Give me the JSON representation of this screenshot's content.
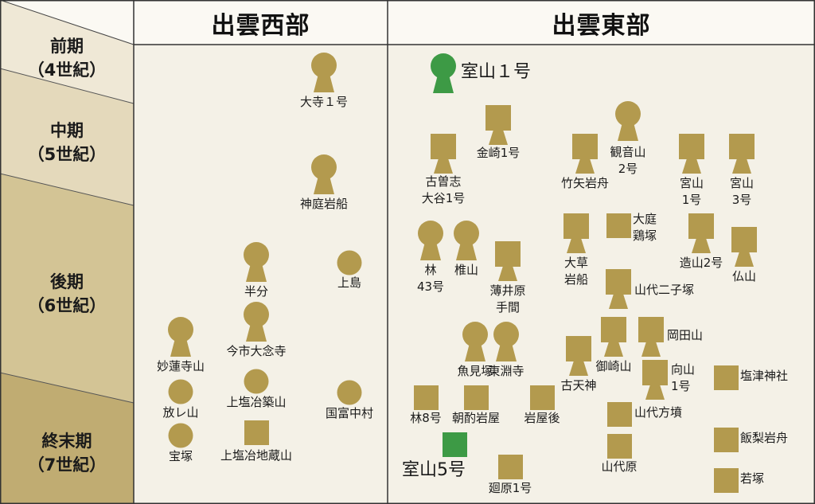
{
  "regions": {
    "west": "出雲西部",
    "east": "出雲東部"
  },
  "periods": [
    {
      "id": "early",
      "label": "前期\n（4世紀）"
    },
    {
      "id": "middle",
      "label": "中期\n（5世紀）"
    },
    {
      "id": "late",
      "label": "後期\n（6世紀）"
    },
    {
      "id": "final",
      "label": "終末期\n（7世紀）"
    }
  ],
  "mound_types": {
    "keyhole": "前方後円墳",
    "square_keyhole": "前方後方墳",
    "round": "円墳",
    "square": "方墳"
  },
  "colors": {
    "mound": "#b39a4e",
    "highlight": "#3d9a45",
    "grid": "#333333",
    "bg": "#f4f1e7"
  },
  "tombs": [
    {
      "name": "大寺１号",
      "type": "keyhole",
      "region": "west",
      "period": "early"
    },
    {
      "name": "神庭岩船",
      "type": "keyhole",
      "region": "west",
      "period": "middle"
    },
    {
      "name": "半分",
      "type": "keyhole",
      "region": "west",
      "period": "late"
    },
    {
      "name": "上島",
      "type": "round",
      "region": "west",
      "period": "late"
    },
    {
      "name": "今市大念寺",
      "type": "keyhole",
      "region": "west",
      "period": "late"
    },
    {
      "name": "妙蓮寺山",
      "type": "keyhole",
      "region": "west",
      "period": "late"
    },
    {
      "name": "上塩冶築山",
      "type": "round",
      "region": "west",
      "period": "final"
    },
    {
      "name": "放レ山",
      "type": "round",
      "region": "west",
      "period": "final"
    },
    {
      "name": "国富中村",
      "type": "round",
      "region": "west",
      "period": "final"
    },
    {
      "name": "宝塚",
      "type": "round",
      "region": "west",
      "period": "final"
    },
    {
      "name": "上塩冶地蔵山",
      "type": "square",
      "region": "west",
      "period": "final"
    },
    {
      "name": "室山１号",
      "type": "keyhole",
      "region": "east",
      "period": "early",
      "highlight": true
    },
    {
      "name": "金崎1号",
      "type": "square_keyhole",
      "region": "east",
      "period": "middle"
    },
    {
      "name": "観音山\n2号",
      "type": "keyhole",
      "region": "east",
      "period": "middle"
    },
    {
      "name": "古曽志\n大谷1号",
      "type": "square_keyhole",
      "region": "east",
      "period": "middle"
    },
    {
      "name": "竹矢岩舟",
      "type": "square_keyhole",
      "region": "east",
      "period": "middle"
    },
    {
      "name": "宮山\n1号",
      "type": "square_keyhole",
      "region": "east",
      "period": "middle"
    },
    {
      "name": "宮山\n3号",
      "type": "square_keyhole",
      "region": "east",
      "period": "middle"
    },
    {
      "name": "林\n43号",
      "type": "keyhole",
      "region": "east",
      "period": "late"
    },
    {
      "name": "椎山",
      "type": "keyhole",
      "region": "east",
      "period": "late"
    },
    {
      "name": "薄井原\n手間",
      "type": "square_keyhole",
      "region": "east",
      "period": "late"
    },
    {
      "name": "大草\n岩船",
      "type": "square_keyhole",
      "region": "east",
      "period": "late"
    },
    {
      "name": "大庭\n鶏塚",
      "type": "square",
      "region": "east",
      "period": "late"
    },
    {
      "name": "造山2号",
      "type": "square_keyhole",
      "region": "east",
      "period": "late"
    },
    {
      "name": "仏山",
      "type": "square_keyhole",
      "region": "east",
      "period": "late"
    },
    {
      "name": "山代二子塚",
      "type": "square_keyhole",
      "region": "east",
      "period": "late"
    },
    {
      "name": "魚見塚",
      "type": "keyhole",
      "region": "east",
      "period": "late"
    },
    {
      "name": "東淵寺",
      "type": "keyhole",
      "region": "east",
      "period": "late"
    },
    {
      "name": "古天神",
      "type": "square_keyhole",
      "region": "east",
      "period": "late"
    },
    {
      "name": "御崎山",
      "type": "square_keyhole",
      "region": "east",
      "period": "late"
    },
    {
      "name": "岡田山",
      "type": "square_keyhole",
      "region": "east",
      "period": "late"
    },
    {
      "name": "向山\n1号",
      "type": "square_keyhole",
      "region": "east",
      "period": "late"
    },
    {
      "name": "塩津神社",
      "type": "square",
      "region": "east",
      "period": "final"
    },
    {
      "name": "林8号",
      "type": "square",
      "region": "east",
      "period": "final"
    },
    {
      "name": "朝酌岩屋",
      "type": "square",
      "region": "east",
      "period": "final"
    },
    {
      "name": "岩屋後",
      "type": "square",
      "region": "east",
      "period": "final"
    },
    {
      "name": "山代方墳",
      "type": "square",
      "region": "east",
      "period": "final"
    },
    {
      "name": "飯梨岩舟",
      "type": "square",
      "region": "east",
      "period": "final"
    },
    {
      "name": "室山5号",
      "type": "square",
      "region": "east",
      "period": "final",
      "highlight": true
    },
    {
      "name": "山代原",
      "type": "square",
      "region": "east",
      "period": "final"
    },
    {
      "name": "廻原1号",
      "type": "square",
      "region": "east",
      "period": "final"
    },
    {
      "name": "若塚",
      "type": "square",
      "region": "east",
      "period": "final"
    }
  ]
}
